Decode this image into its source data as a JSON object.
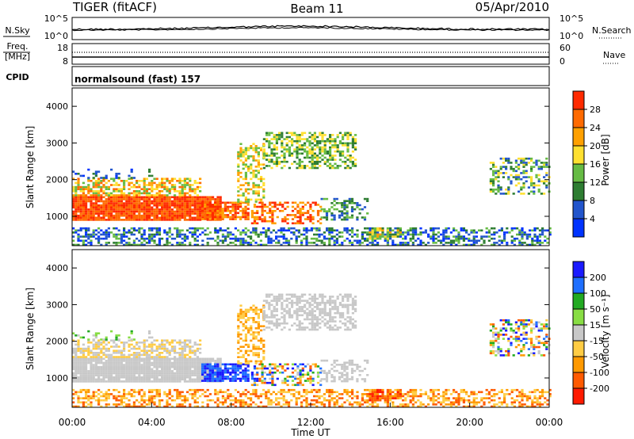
{
  "header": {
    "station": "TIGER (fitACF)",
    "beam": "Beam 11",
    "date": "05/Apr/2010"
  },
  "chart_data": [
    {
      "type": "line",
      "panel": "noise-search",
      "left_label": "N.Sky",
      "right_label": "N.Search",
      "left_ticks": [
        "10^5",
        "10^0"
      ],
      "right_ticks": [
        "10^5",
        "10^0"
      ]
    },
    {
      "type": "line",
      "panel": "frequency-nave",
      "left_label_top": "Freq.",
      "left_label_bottom": "[MHz]",
      "right_label": "Nave",
      "left_ticks": [
        "18",
        "8"
      ],
      "right_ticks": [
        "60",
        "0"
      ]
    },
    {
      "type": "table",
      "panel": "cpid",
      "label": "CPID",
      "text": "normalsound (fast) 157"
    },
    {
      "type": "heatmap",
      "panel": "power",
      "ylabel": "Slant Range [km]",
      "ylim": [
        200,
        4500
      ],
      "yticks": [
        "1000",
        "2000",
        "3000",
        "4000"
      ],
      "colorbar": {
        "label": "Power [dB]",
        "ticks": [
          "4",
          "8",
          "12",
          "16",
          "20",
          "24",
          "28"
        ],
        "colors": [
          "#0033ff",
          "#2255cc",
          "#2e7d32",
          "#66bb44",
          "#ffe030",
          "#ffa000",
          "#ff6a00",
          "#ff2a00"
        ]
      }
    },
    {
      "type": "heatmap",
      "panel": "velocity",
      "ylabel": "Slant Range [km]",
      "ylim": [
        200,
        4500
      ],
      "yticks": [
        "1000",
        "2000",
        "3000",
        "4000"
      ],
      "xlabel": "Time UT",
      "xticks": [
        "00:00",
        "04:00",
        "08:00",
        "12:00",
        "16:00",
        "20:00",
        "00:00"
      ],
      "colorbar": {
        "label": "Velocity [m s⁻¹]",
        "ticks": [
          "200",
          "100",
          "50",
          "15",
          "-15",
          "-50",
          "-100",
          "-200"
        ],
        "colors": [
          "#1a1aff",
          "#1f6fff",
          "#22aa22",
          "#88dd44",
          "#c8c8c8",
          "#ffcc44",
          "#ff9900",
          "#ff5a00",
          "#ff1a00"
        ]
      }
    }
  ]
}
